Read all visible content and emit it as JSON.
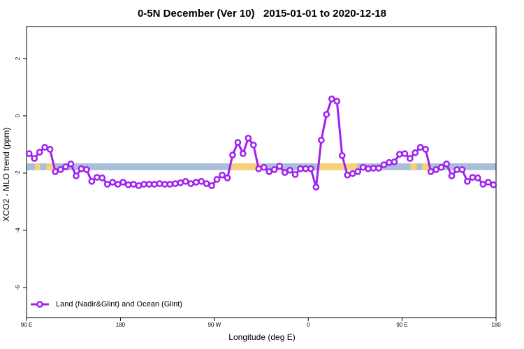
{
  "chart_data": {
    "type": "line",
    "title": "0-5N December (Ver 10)   2015-01-01 to 2020-12-18",
    "xlabel": "Longitude (deg E)",
    "ylabel": "XCO2 - MLO trend (ppm)",
    "xlim": [
      90,
      540
    ],
    "ylim": [
      -7.05,
      3.12
    ],
    "xticks": [
      {
        "value": 90,
        "label": "90 E"
      },
      180,
      {
        "value": 270,
        "label": "90 W"
      },
      {
        "value": 360,
        "label": "0"
      },
      {
        "value": 450,
        "label": "90 E"
      },
      {
        "value": 540,
        "label": "180"
      }
    ],
    "yticks": [
      2,
      0,
      -2,
      -4,
      -6
    ],
    "legend": "bottomleft",
    "band": {
      "ylim": [
        -1.9,
        -1.66
      ],
      "ocean_color": "#a9bfd9",
      "land_color": "#f5d27a",
      "land": [
        [
          98,
          103
        ],
        [
          109,
          117
        ],
        [
          286,
          316
        ],
        [
          369,
          407
        ],
        [
          458,
          464
        ],
        [
          469,
          477
        ]
      ]
    },
    "x": [
      92.5,
      97.5,
      102.5,
      107.5,
      112.5,
      117.5,
      122.5,
      127.5,
      132.5,
      137.5,
      142.5,
      147.5,
      152.5,
      157.5,
      162.5,
      167.5,
      172.5,
      177.5,
      182.5,
      187.5,
      192.5,
      197.5,
      202.5,
      207.5,
      212.5,
      217.5,
      222.5,
      227.5,
      232.5,
      237.5,
      242.5,
      247.5,
      252.5,
      257.5,
      262.5,
      267.5,
      272.5,
      277.5,
      282.5,
      287.5,
      292.5,
      297.5,
      302.5,
      307.5,
      312.5,
      317.5,
      322.5,
      327.5,
      332.5,
      337.5,
      342.5,
      347.5,
      352.5,
      357.5,
      362.5,
      367.5,
      372.5,
      377.5,
      382.5,
      387.5,
      392.5,
      397.5,
      402.5,
      407.5,
      412.5,
      417.5,
      422.5,
      427.5,
      432.5,
      437.5,
      442.5,
      447.5,
      452.5,
      457.5,
      462.5,
      467.5,
      472.5,
      477.5,
      482.5,
      487.5,
      492.5,
      497.5,
      502.5,
      507.5,
      512.5,
      517.5,
      522.5,
      527.5,
      532.5,
      537.5
    ],
    "series": [
      {
        "name": "Land (Nadir&Glint) and Ocean (Glint)",
        "color": "#a020f0",
        "values": [
          -1.32,
          -1.49,
          -1.27,
          -1.1,
          -1.17,
          -1.95,
          -1.88,
          -1.78,
          -1.68,
          -2.1,
          -1.85,
          -1.88,
          -2.29,
          -2.15,
          -2.17,
          -2.39,
          -2.32,
          -2.39,
          -2.32,
          -2.41,
          -2.39,
          -2.44,
          -2.39,
          -2.39,
          -2.39,
          -2.37,
          -2.39,
          -2.39,
          -2.37,
          -2.34,
          -2.29,
          -2.37,
          -2.32,
          -2.29,
          -2.37,
          -2.44,
          -2.22,
          -2.07,
          -2.17,
          -1.37,
          -0.93,
          -1.32,
          -0.78,
          -1.02,
          -1.85,
          -1.8,
          -1.95,
          -1.88,
          -1.76,
          -1.98,
          -1.9,
          -2.05,
          -1.85,
          -1.85,
          -1.85,
          -2.49,
          -0.85,
          0.05,
          0.59,
          0.51,
          -1.39,
          -2.07,
          -2.02,
          -1.95,
          -1.8,
          -1.85,
          -1.83,
          -1.83,
          -1.71,
          -1.63,
          -1.61,
          -1.34,
          -1.32,
          -1.49,
          -1.29,
          -1.1,
          -1.17,
          -1.95,
          -1.88,
          -1.8,
          -1.68,
          -2.1,
          -1.88,
          -1.88,
          -2.29,
          -2.15,
          -2.17,
          -2.39,
          -2.32,
          -2.41
        ]
      }
    ]
  }
}
